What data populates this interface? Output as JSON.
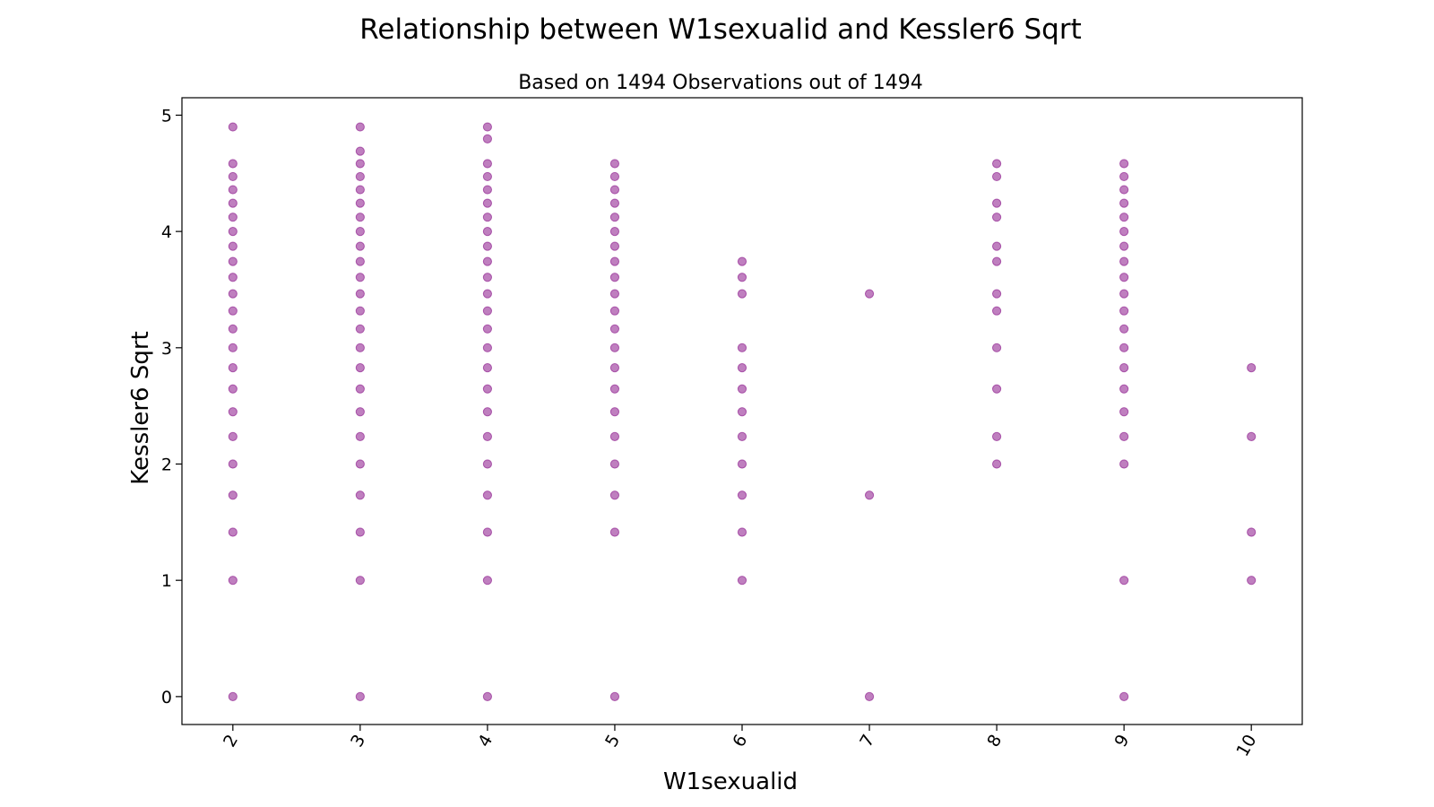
{
  "chart_data": {
    "type": "scatter",
    "title": "Relationship between W1sexualid and Kessler6 Sqrt",
    "subtitle": "Based on 1494 Observations out of 1494",
    "xlabel": "W1sexualid",
    "ylabel": "Kessler6 Sqrt",
    "x_ticks": [
      "2",
      "3",
      "4",
      "5",
      "6",
      "7",
      "8",
      "9",
      "10"
    ],
    "y_ticks": [
      "0",
      "1",
      "2",
      "3",
      "4",
      "5"
    ],
    "xlim": [
      1.6,
      10.4
    ],
    "ylim": [
      -0.24,
      5.15
    ],
    "grid": false,
    "legend": "none",
    "marker_color": "#800080",
    "marker_alpha": 0.5,
    "series": [
      {
        "points": [
          [
            2,
            0
          ],
          [
            2,
            1
          ],
          [
            2,
            1.414
          ],
          [
            2,
            1.732
          ],
          [
            2,
            2
          ],
          [
            2,
            2.236
          ],
          [
            2,
            2.449
          ],
          [
            2,
            2.646
          ],
          [
            2,
            2.828
          ],
          [
            2,
            3
          ],
          [
            2,
            3.162
          ],
          [
            2,
            3.317
          ],
          [
            2,
            3.464
          ],
          [
            2,
            3.606
          ],
          [
            2,
            3.742
          ],
          [
            2,
            3.873
          ],
          [
            2,
            4
          ],
          [
            2,
            4.123
          ],
          [
            2,
            4.243
          ],
          [
            2,
            4.359
          ],
          [
            2,
            4.472
          ],
          [
            2,
            4.583
          ],
          [
            2,
            4.899
          ],
          [
            3,
            0
          ],
          [
            3,
            1
          ],
          [
            3,
            1.414
          ],
          [
            3,
            1.732
          ],
          [
            3,
            2
          ],
          [
            3,
            2.236
          ],
          [
            3,
            2.449
          ],
          [
            3,
            2.646
          ],
          [
            3,
            2.828
          ],
          [
            3,
            3
          ],
          [
            3,
            3.162
          ],
          [
            3,
            3.317
          ],
          [
            3,
            3.464
          ],
          [
            3,
            3.606
          ],
          [
            3,
            3.742
          ],
          [
            3,
            3.873
          ],
          [
            3,
            4
          ],
          [
            3,
            4.123
          ],
          [
            3,
            4.243
          ],
          [
            3,
            4.359
          ],
          [
            3,
            4.472
          ],
          [
            3,
            4.583
          ],
          [
            3,
            4.69
          ],
          [
            3,
            4.899
          ],
          [
            4,
            0
          ],
          [
            4,
            1
          ],
          [
            4,
            1.414
          ],
          [
            4,
            1.732
          ],
          [
            4,
            2
          ],
          [
            4,
            2.236
          ],
          [
            4,
            2.449
          ],
          [
            4,
            2.646
          ],
          [
            4,
            2.828
          ],
          [
            4,
            3
          ],
          [
            4,
            3.162
          ],
          [
            4,
            3.317
          ],
          [
            4,
            3.464
          ],
          [
            4,
            3.606
          ],
          [
            4,
            3.742
          ],
          [
            4,
            3.873
          ],
          [
            4,
            4
          ],
          [
            4,
            4.123
          ],
          [
            4,
            4.243
          ],
          [
            4,
            4.359
          ],
          [
            4,
            4.472
          ],
          [
            4,
            4.583
          ],
          [
            4,
            4.796
          ],
          [
            4,
            4.899
          ],
          [
            5,
            0
          ],
          [
            5,
            1.414
          ],
          [
            5,
            1.732
          ],
          [
            5,
            2
          ],
          [
            5,
            2.236
          ],
          [
            5,
            2.449
          ],
          [
            5,
            2.646
          ],
          [
            5,
            2.828
          ],
          [
            5,
            3
          ],
          [
            5,
            3.162
          ],
          [
            5,
            3.317
          ],
          [
            5,
            3.464
          ],
          [
            5,
            3.606
          ],
          [
            5,
            3.742
          ],
          [
            5,
            3.873
          ],
          [
            5,
            4
          ],
          [
            5,
            4.123
          ],
          [
            5,
            4.243
          ],
          [
            5,
            4.359
          ],
          [
            5,
            4.472
          ],
          [
            5,
            4.583
          ],
          [
            6,
            1
          ],
          [
            6,
            1.414
          ],
          [
            6,
            1.732
          ],
          [
            6,
            2
          ],
          [
            6,
            2.236
          ],
          [
            6,
            2.449
          ],
          [
            6,
            2.646
          ],
          [
            6,
            2.828
          ],
          [
            6,
            3
          ],
          [
            6,
            3.464
          ],
          [
            6,
            3.606
          ],
          [
            6,
            3.742
          ],
          [
            7,
            0
          ],
          [
            7,
            1.732
          ],
          [
            7,
            3.464
          ],
          [
            8,
            2
          ],
          [
            8,
            2.236
          ],
          [
            8,
            2.646
          ],
          [
            8,
            3
          ],
          [
            8,
            3.317
          ],
          [
            8,
            3.464
          ],
          [
            8,
            3.742
          ],
          [
            8,
            3.873
          ],
          [
            8,
            4.123
          ],
          [
            8,
            4.243
          ],
          [
            8,
            4.472
          ],
          [
            8,
            4.583
          ],
          [
            9,
            0
          ],
          [
            9,
            1
          ],
          [
            9,
            2
          ],
          [
            9,
            2.236
          ],
          [
            9,
            2.449
          ],
          [
            9,
            2.646
          ],
          [
            9,
            2.828
          ],
          [
            9,
            3
          ],
          [
            9,
            3.162
          ],
          [
            9,
            3.317
          ],
          [
            9,
            3.464
          ],
          [
            9,
            3.606
          ],
          [
            9,
            3.742
          ],
          [
            9,
            3.873
          ],
          [
            9,
            4
          ],
          [
            9,
            4.123
          ],
          [
            9,
            4.243
          ],
          [
            9,
            4.359
          ],
          [
            9,
            4.472
          ],
          [
            9,
            4.583
          ],
          [
            10,
            1
          ],
          [
            10,
            1.414
          ],
          [
            10,
            2.236
          ],
          [
            10,
            2.828
          ]
        ]
      }
    ]
  }
}
